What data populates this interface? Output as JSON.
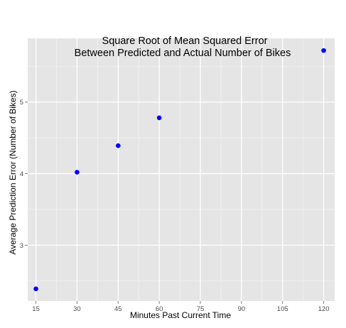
{
  "chart_data": {
    "type": "scatter",
    "title": "Square Root of Mean Squared Error",
    "subtitle": "Between Predicted and Actual Number of Bikes",
    "xlabel": "Minutes Past Current Time",
    "ylabel": "Average Prediction Error (Number of Bikes)",
    "x_ticks": [
      15,
      30,
      45,
      60,
      75,
      90,
      105,
      120
    ],
    "y_ticks": [
      3,
      4,
      5
    ],
    "xlim": [
      12,
      124
    ],
    "ylim": [
      2.22,
      5.89
    ],
    "grid": true,
    "panel_background": "#e5e5e5",
    "grid_color": "#ffffff",
    "point_color": "#0000ff",
    "series": [
      {
        "x": [
          15,
          30,
          45,
          60,
          120
        ],
        "y": [
          2.39,
          4.02,
          4.39,
          4.78,
          5.72
        ]
      }
    ]
  }
}
